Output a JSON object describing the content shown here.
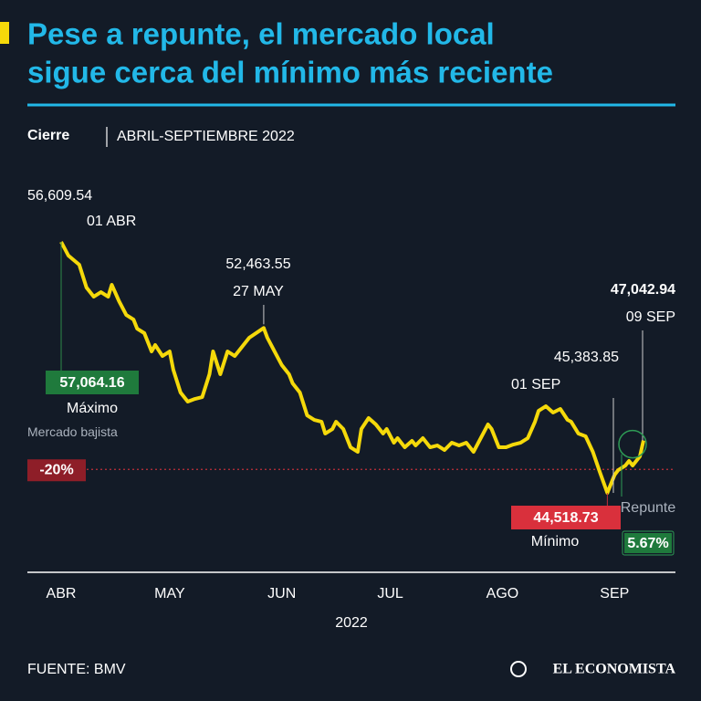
{
  "chart_data": {
    "type": "line",
    "title_lines": [
      "Pese a repunte, el mercado local",
      "sigue cerca del mínimo más reciente"
    ],
    "subtitle_label": "Cierre",
    "subtitle_period": "ABRIL-SEPTIEMBRE 2022",
    "x_label": "2022",
    "x": [
      "2022-04-01",
      "2022-04-03",
      "2022-04-06",
      "2022-04-08",
      "2022-04-10",
      "2022-04-12",
      "2022-04-14",
      "2022-04-15",
      "2022-04-17",
      "2022-04-19",
      "2022-04-21",
      "2022-04-22",
      "2022-04-24",
      "2022-04-26",
      "2022-04-27",
      "2022-04-29",
      "2022-05-01",
      "2022-05-02",
      "2022-05-04",
      "2022-05-06",
      "2022-05-08",
      "2022-05-10",
      "2022-05-12",
      "2022-05-13",
      "2022-05-15",
      "2022-05-17",
      "2022-05-19",
      "2022-05-21",
      "2022-05-23",
      "2022-05-27",
      "2022-05-28",
      "2022-05-30",
      "2022-06-01",
      "2022-06-03",
      "2022-06-04",
      "2022-06-06",
      "2022-06-08",
      "2022-06-10",
      "2022-06-12",
      "2022-06-13",
      "2022-06-15",
      "2022-06-16",
      "2022-06-18",
      "2022-06-20",
      "2022-06-22",
      "2022-06-23",
      "2022-06-25",
      "2022-06-27",
      "2022-06-29",
      "2022-06-30",
      "2022-07-02",
      "2022-07-03",
      "2022-07-05",
      "2022-07-07",
      "2022-07-08",
      "2022-07-10",
      "2022-07-12",
      "2022-07-14",
      "2022-07-16",
      "2022-07-18",
      "2022-07-20",
      "2022-07-22",
      "2022-07-23",
      "2022-07-24",
      "2022-07-26",
      "2022-07-28",
      "2022-07-29",
      "2022-07-31",
      "2022-08-02",
      "2022-08-04",
      "2022-08-06",
      "2022-08-08",
      "2022-08-10",
      "2022-08-11",
      "2022-08-13",
      "2022-08-15",
      "2022-08-17",
      "2022-08-19",
      "2022-08-20",
      "2022-08-22",
      "2022-08-24",
      "2022-08-26",
      "2022-08-28",
      "2022-08-30",
      "2022-09-01",
      "2022-09-02",
      "2022-09-04",
      "2022-09-05",
      "2022-09-06",
      "2022-09-08",
      "2022-09-09"
    ],
    "series": [
      {
        "color": "#f5d90a",
        "values": [
          56609.54,
          55950,
          55510,
          54411,
          53971,
          54191,
          53971,
          54543,
          53752,
          53092,
          52872,
          52432,
          52213,
          51333,
          51641,
          51113,
          51333,
          50454,
          49355,
          48915,
          49047,
          49134,
          50234,
          51333,
          50234,
          51333,
          51113,
          51553,
          51993,
          52463.55,
          51993,
          51333,
          50674,
          50234,
          49794,
          49355,
          48255,
          48035,
          47947,
          47376,
          47596,
          47947,
          47596,
          46716,
          46496,
          47596,
          48123,
          47816,
          47376,
          47596,
          46936,
          47156,
          46716,
          47024,
          46804,
          47156,
          46716,
          46804,
          46584,
          46936,
          46804,
          46936,
          46716,
          46496,
          47156,
          47816,
          47596,
          46716,
          46716,
          46848,
          46936,
          47156,
          47947,
          48475,
          48695,
          48387,
          48563,
          48035,
          47947,
          47376,
          47244,
          46496,
          45485,
          44518.73,
          45383.85,
          45617,
          45837,
          46057,
          45837,
          46276,
          47042.94
        ]
      }
    ],
    "xticks": [
      {
        "value": "2022-04-01",
        "label": "ABR"
      },
      {
        "value": "2022-05-01",
        "label": "MAY"
      },
      {
        "value": "2022-06-01",
        "label": "JUN"
      },
      {
        "value": "2022-07-01",
        "label": "JUL"
      },
      {
        "value": "2022-08-01",
        "label": "AGO"
      },
      {
        "value": "2022-09-01",
        "label": "SEP"
      }
    ],
    "highlights": [
      {
        "x": "2022-04-01",
        "value": 56609.54,
        "label": "56,609.54",
        "date": "01 ABR"
      },
      {
        "x": "2022-05-27",
        "value": 52463.55,
        "label": "52,463.55",
        "date": "27 MAY"
      },
      {
        "x": "2022-09-01",
        "value": 45383.85,
        "label": "45,383.85",
        "date": "01 SEP"
      },
      {
        "x": "2022-09-09",
        "value": 47042.94,
        "label": "47,042.94",
        "date": "09 SEP"
      }
    ],
    "maximum": {
      "value": 57064.16,
      "label": "57,064.16",
      "text": "Máximo"
    },
    "minimum": {
      "x": "2022-08-30",
      "value": 44518.73,
      "label": "44,518.73",
      "text": "Mínimo"
    },
    "bear_market": {
      "text": "Mercado bajista",
      "change": -20,
      "label": "-20%"
    },
    "rebound": {
      "text": "Repunte",
      "change": 5.67,
      "label": "5.67%"
    },
    "source": "FUENTE: BMV",
    "brand": "EL ECONOMISTA"
  }
}
